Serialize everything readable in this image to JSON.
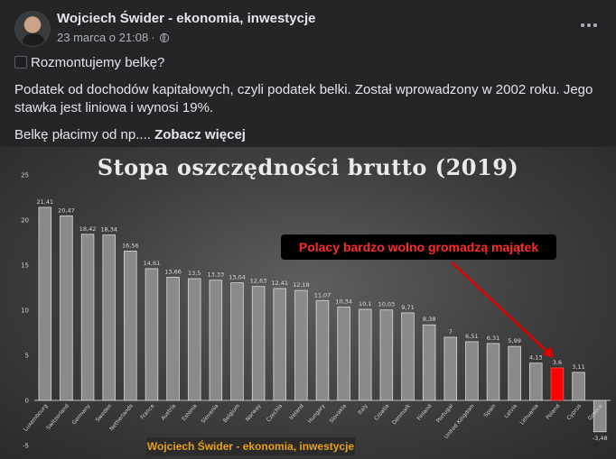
{
  "post": {
    "author": "Wojciech Świder - ekonomia, inwestycje",
    "date": "23 marca o 21:08",
    "dot": "·",
    "line1": "Rozmontujemy belkę?",
    "line2": "Podatek od dochodów kapitałowych, czyli podatek belki. Został wprowadzony w 2002 roku. Jego stawka jest liniowa i wynosi 19%.",
    "line3_prefix": "Belkę płacimy od np.... ",
    "see_more": "Zobacz więcej"
  },
  "colors": {
    "bar": "#8a8a8a",
    "highlight": "#ff0000",
    "callout_text": "#ff2a2a",
    "watermark_text": "#e8a116"
  },
  "chart_data": {
    "type": "bar",
    "title": "Stopa oszczędności brutto (2019)",
    "ylim": [
      -5,
      25
    ],
    "yticks": [
      -5,
      0,
      5,
      10,
      15,
      20,
      25
    ],
    "grid": false,
    "categories": [
      "Luxembourg",
      "Switzerland",
      "Germany",
      "Sweden",
      "Netherlands",
      "France",
      "Austria",
      "Estonia",
      "Slovenia",
      "Belgium",
      "Norway",
      "Czechia",
      "Ireland",
      "Hungary",
      "Slovakia",
      "Italy",
      "Croatia",
      "Denmark",
      "Finland",
      "Portugal",
      "United Kingdom",
      "Spain",
      "Latvia",
      "Lithuania",
      "Poland",
      "Cyprus",
      "Greece"
    ],
    "values": [
      21.41,
      20.47,
      18.42,
      18.34,
      16.56,
      14.61,
      13.66,
      13.5,
      13.33,
      13.04,
      12.63,
      12.41,
      12.19,
      11.07,
      10.34,
      10.1,
      10.03,
      9.71,
      8.38,
      7,
      6.51,
      6.31,
      5.99,
      4.13,
      3.6,
      3.11,
      -3.48
    ],
    "value_labels": [
      "21,41",
      "20,47",
      "18,42",
      "18,34",
      "16,56",
      "14,61",
      "13,66",
      "13,5",
      "13,33",
      "13,04",
      "12,63",
      "12,41",
      "12,19",
      "11,07",
      "10,34",
      "10,1",
      "10,03",
      "9,71",
      "8,38",
      "7",
      "6,51",
      "6,31",
      "5,99",
      "4,13",
      "3,6",
      "3,11",
      "-3,48"
    ],
    "highlight_category": "Poland",
    "annotation": "Polacy bardzo wolno gromadzą majątek",
    "watermark": "Wojciech Świder - ekonomia, inwestycje"
  }
}
